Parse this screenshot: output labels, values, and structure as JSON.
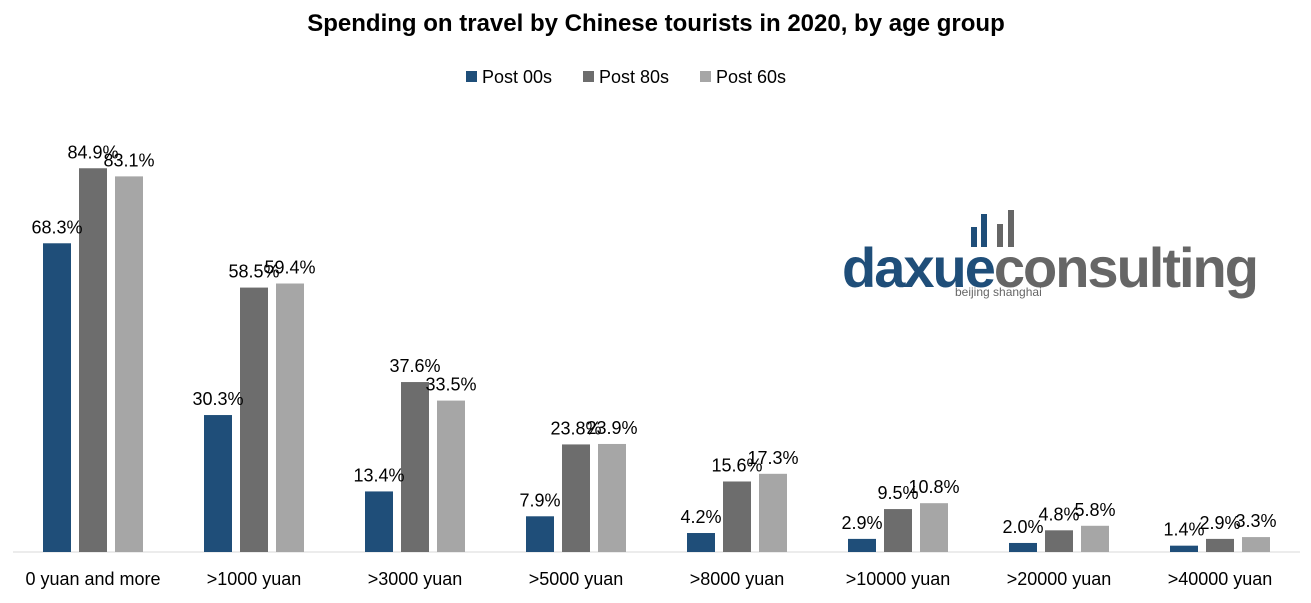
{
  "chart_data": {
    "type": "bar",
    "title": "Spending on travel by Chinese tourists in 2020, by age group",
    "xlabel": "",
    "ylabel": "",
    "ylim": [
      0,
      100
    ],
    "grid": false,
    "legend_position": "top",
    "categories": [
      "0 yuan and more",
      ">1000 yuan",
      ">3000 yuan",
      ">5000 yuan",
      ">8000 yuan",
      ">10000 yuan",
      ">20000 yuan",
      ">40000 yuan"
    ],
    "series": [
      {
        "name": "Post 00s",
        "color": "#1F4E79",
        "values": [
          68.3,
          30.3,
          13.4,
          7.9,
          4.2,
          2.9,
          2.0,
          1.4
        ]
      },
      {
        "name": "Post 80s",
        "color": "#6D6D6D",
        "values": [
          84.9,
          58.5,
          37.6,
          23.8,
          15.6,
          9.5,
          4.8,
          2.9
        ]
      },
      {
        "name": "Post 60s",
        "color": "#A6A6A6",
        "values": [
          83.1,
          59.4,
          33.5,
          23.9,
          17.3,
          10.8,
          5.8,
          3.3
        ]
      }
    ],
    "value_label_format": "{v}%"
  },
  "watermark": {
    "brand_part1": "daxue",
    "brand_part2": "consulting",
    "tagline": "beijing shanghai",
    "colors": {
      "blue": "#1F4E79",
      "gray": "#666666"
    }
  }
}
